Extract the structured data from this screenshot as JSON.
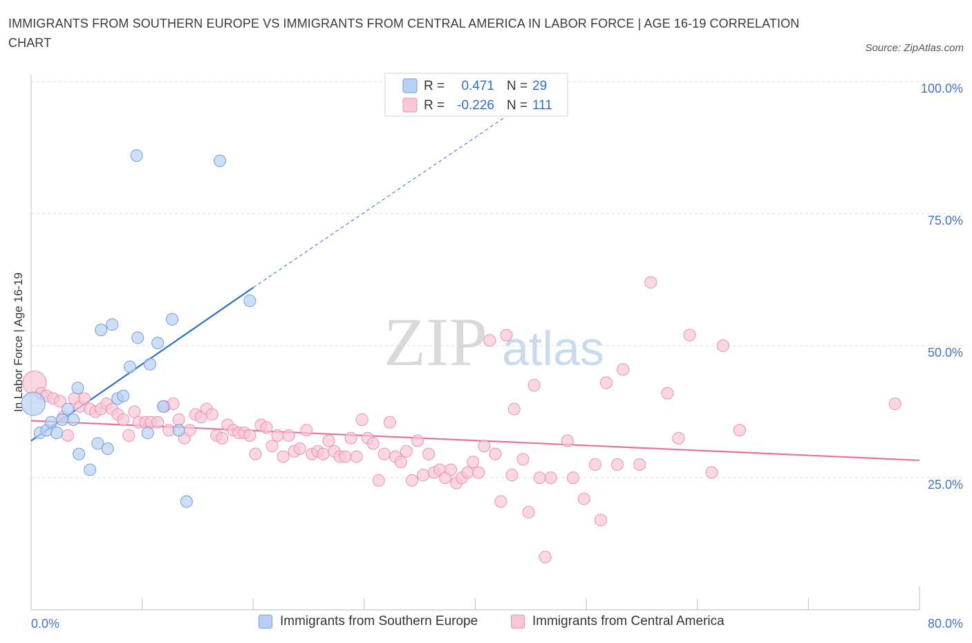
{
  "title": "IMMIGRANTS FROM SOUTHERN EUROPE VS IMMIGRANTS FROM CENTRAL AMERICA IN LABOR FORCE | AGE 16-19 CORRELATION CHART",
  "source": "Source: ZipAtlas.com",
  "watermark": {
    "zip": "ZIP",
    "atlas": "atlas"
  },
  "colors": {
    "blue_fill": "#b8d0f4",
    "blue_stroke": "#6f9fd8",
    "blue_line": "#2b6fd1",
    "pink_fill": "#f8c6d6",
    "pink_stroke": "#e892b0",
    "pink_line": "#e8709c",
    "tick_color": "#4472c4",
    "grid": "#dddddd"
  },
  "legend": {
    "r_label": "R =",
    "n_label": "N =",
    "rows": [
      {
        "r": "0.471",
        "n": "29"
      },
      {
        "r": "-0.226",
        "n": "111"
      }
    ]
  },
  "chart_data": {
    "type": "scatter",
    "title": "IMMIGRANTS FROM SOUTHERN EUROPE VS IMMIGRANTS FROM CENTRAL AMERICA IN LABOR FORCE | AGE 16-19 CORRELATION CHART",
    "xlabel": "",
    "ylabel": "In Labor Force | Age 16-19",
    "xlim": [
      0,
      80
    ],
    "ylim": [
      0,
      100
    ],
    "x_tick_labels": [
      "0.0%",
      "80.0%"
    ],
    "y_ticks": [
      25,
      50,
      75,
      100
    ],
    "y_tick_labels": [
      "25.0%",
      "50.0%",
      "75.0%",
      "100.0%"
    ],
    "grid": true,
    "legend_position": "top-center",
    "series": [
      {
        "name": "Immigrants from Southern Europe",
        "color": "#b8d0f4",
        "trend": {
          "x": [
            0,
            20
          ],
          "y": [
            32,
            61
          ],
          "extended_to": [
            46,
            98
          ]
        },
        "points": [
          {
            "x": 0.2,
            "y": 39,
            "big": true
          },
          {
            "x": 0.8,
            "y": 33.5
          },
          {
            "x": 1.4,
            "y": 34
          },
          {
            "x": 1.8,
            "y": 35.5
          },
          {
            "x": 2.3,
            "y": 33.5
          },
          {
            "x": 2.8,
            "y": 36
          },
          {
            "x": 3.8,
            "y": 36
          },
          {
            "x": 3.3,
            "y": 38
          },
          {
            "x": 4.2,
            "y": 42
          },
          {
            "x": 4.3,
            "y": 29.5
          },
          {
            "x": 5.3,
            "y": 26.5
          },
          {
            "x": 6.0,
            "y": 31.5
          },
          {
            "x": 6.3,
            "y": 53
          },
          {
            "x": 6.9,
            "y": 30.5
          },
          {
            "x": 7.3,
            "y": 54
          },
          {
            "x": 7.8,
            "y": 40
          },
          {
            "x": 8.3,
            "y": 40.5
          },
          {
            "x": 8.9,
            "y": 46
          },
          {
            "x": 9.5,
            "y": 86
          },
          {
            "x": 9.6,
            "y": 51.5
          },
          {
            "x": 10.5,
            "y": 33.5
          },
          {
            "x": 10.7,
            "y": 46.5
          },
          {
            "x": 11.4,
            "y": 50.5
          },
          {
            "x": 11.9,
            "y": 38.5
          },
          {
            "x": 12.7,
            "y": 55
          },
          {
            "x": 13.3,
            "y": 34
          },
          {
            "x": 14.0,
            "y": 20.5
          },
          {
            "x": 17.0,
            "y": 85
          },
          {
            "x": 19.7,
            "y": 58.5
          }
        ]
      },
      {
        "name": "Immigrants from Central America",
        "color": "#f8c6d6",
        "trend": {
          "x": [
            0,
            80
          ],
          "y": [
            35.8,
            28.3
          ]
        },
        "points": [
          {
            "x": 0.3,
            "y": 43,
            "big": true
          },
          {
            "x": 0.9,
            "y": 41
          },
          {
            "x": 1.4,
            "y": 40.5
          },
          {
            "x": 2.0,
            "y": 40
          },
          {
            "x": 2.6,
            "y": 39.5
          },
          {
            "x": 2.9,
            "y": 36.5
          },
          {
            "x": 3.3,
            "y": 33
          },
          {
            "x": 3.9,
            "y": 40
          },
          {
            "x": 4.4,
            "y": 38.5
          },
          {
            "x": 4.8,
            "y": 40
          },
          {
            "x": 5.3,
            "y": 38
          },
          {
            "x": 5.8,
            "y": 37.5
          },
          {
            "x": 6.3,
            "y": 38
          },
          {
            "x": 6.8,
            "y": 39
          },
          {
            "x": 7.3,
            "y": 38
          },
          {
            "x": 7.8,
            "y": 37
          },
          {
            "x": 8.3,
            "y": 36
          },
          {
            "x": 8.8,
            "y": 33
          },
          {
            "x": 9.3,
            "y": 37.5
          },
          {
            "x": 9.7,
            "y": 35.5
          },
          {
            "x": 10.3,
            "y": 35.5
          },
          {
            "x": 10.8,
            "y": 35.5
          },
          {
            "x": 11.4,
            "y": 35.5
          },
          {
            "x": 12.0,
            "y": 38.5
          },
          {
            "x": 12.4,
            "y": 34
          },
          {
            "x": 12.8,
            "y": 39
          },
          {
            "x": 13.3,
            "y": 36
          },
          {
            "x": 13.8,
            "y": 32.5
          },
          {
            "x": 14.3,
            "y": 34
          },
          {
            "x": 14.8,
            "y": 37
          },
          {
            "x": 15.3,
            "y": 36.5
          },
          {
            "x": 15.8,
            "y": 38
          },
          {
            "x": 16.3,
            "y": 37
          },
          {
            "x": 16.7,
            "y": 33
          },
          {
            "x": 17.2,
            "y": 32.5
          },
          {
            "x": 17.7,
            "y": 35
          },
          {
            "x": 18.2,
            "y": 34
          },
          {
            "x": 18.7,
            "y": 33.5
          },
          {
            "x": 19.2,
            "y": 33.5
          },
          {
            "x": 19.7,
            "y": 33
          },
          {
            "x": 20.2,
            "y": 29.5
          },
          {
            "x": 20.7,
            "y": 35
          },
          {
            "x": 21.2,
            "y": 34.5
          },
          {
            "x": 21.7,
            "y": 31
          },
          {
            "x": 22.2,
            "y": 33
          },
          {
            "x": 22.7,
            "y": 29
          },
          {
            "x": 23.2,
            "y": 33
          },
          {
            "x": 23.7,
            "y": 30
          },
          {
            "x": 24.2,
            "y": 30.5
          },
          {
            "x": 24.8,
            "y": 34
          },
          {
            "x": 25.3,
            "y": 29.5
          },
          {
            "x": 25.8,
            "y": 30
          },
          {
            "x": 26.3,
            "y": 29.5
          },
          {
            "x": 26.8,
            "y": 32
          },
          {
            "x": 27.3,
            "y": 30
          },
          {
            "x": 27.8,
            "y": 29
          },
          {
            "x": 28.3,
            "y": 29
          },
          {
            "x": 28.8,
            "y": 32.5
          },
          {
            "x": 29.3,
            "y": 29
          },
          {
            "x": 29.8,
            "y": 36
          },
          {
            "x": 30.3,
            "y": 32.5
          },
          {
            "x": 30.8,
            "y": 31.5
          },
          {
            "x": 31.3,
            "y": 24.5
          },
          {
            "x": 31.8,
            "y": 29.5
          },
          {
            "x": 32.3,
            "y": 35.5
          },
          {
            "x": 32.8,
            "y": 29
          },
          {
            "x": 33.3,
            "y": 28
          },
          {
            "x": 33.8,
            "y": 30
          },
          {
            "x": 34.3,
            "y": 24.5
          },
          {
            "x": 34.8,
            "y": 32
          },
          {
            "x": 35.3,
            "y": 25.5
          },
          {
            "x": 35.8,
            "y": 29.5
          },
          {
            "x": 36.3,
            "y": 26
          },
          {
            "x": 36.8,
            "y": 26.5
          },
          {
            "x": 37.3,
            "y": 25
          },
          {
            "x": 37.8,
            "y": 26.5
          },
          {
            "x": 38.3,
            "y": 24
          },
          {
            "x": 38.8,
            "y": 25
          },
          {
            "x": 39.3,
            "y": 26
          },
          {
            "x": 39.8,
            "y": 28
          },
          {
            "x": 40.3,
            "y": 26
          },
          {
            "x": 40.8,
            "y": 31
          },
          {
            "x": 41.3,
            "y": 51
          },
          {
            "x": 41.8,
            "y": 29.5
          },
          {
            "x": 42.3,
            "y": 20.5
          },
          {
            "x": 42.8,
            "y": 52
          },
          {
            "x": 43.3,
            "y": 25.5
          },
          {
            "x": 43.5,
            "y": 38
          },
          {
            "x": 44.3,
            "y": 28.5
          },
          {
            "x": 44.8,
            "y": 18.5
          },
          {
            "x": 45.3,
            "y": 42.5
          },
          {
            "x": 45.8,
            "y": 25
          },
          {
            "x": 46.3,
            "y": 10
          },
          {
            "x": 46.8,
            "y": 25
          },
          {
            "x": 48.3,
            "y": 32
          },
          {
            "x": 48.8,
            "y": 25
          },
          {
            "x": 49.8,
            "y": 21
          },
          {
            "x": 50.8,
            "y": 27.5
          },
          {
            "x": 51.3,
            "y": 17
          },
          {
            "x": 51.8,
            "y": 43
          },
          {
            "x": 52.8,
            "y": 27.5
          },
          {
            "x": 53.3,
            "y": 45.5
          },
          {
            "x": 54.8,
            "y": 27.5
          },
          {
            "x": 55.8,
            "y": 62
          },
          {
            "x": 57.3,
            "y": 41
          },
          {
            "x": 58.3,
            "y": 32.5
          },
          {
            "x": 59.3,
            "y": 52
          },
          {
            "x": 61.3,
            "y": 26
          },
          {
            "x": 62.3,
            "y": 50
          },
          {
            "x": 63.8,
            "y": 34
          },
          {
            "x": 77.8,
            "y": 39
          }
        ]
      }
    ]
  },
  "bottom_legend": [
    "Immigrants from Southern Europe",
    "Immigrants from Central America"
  ]
}
